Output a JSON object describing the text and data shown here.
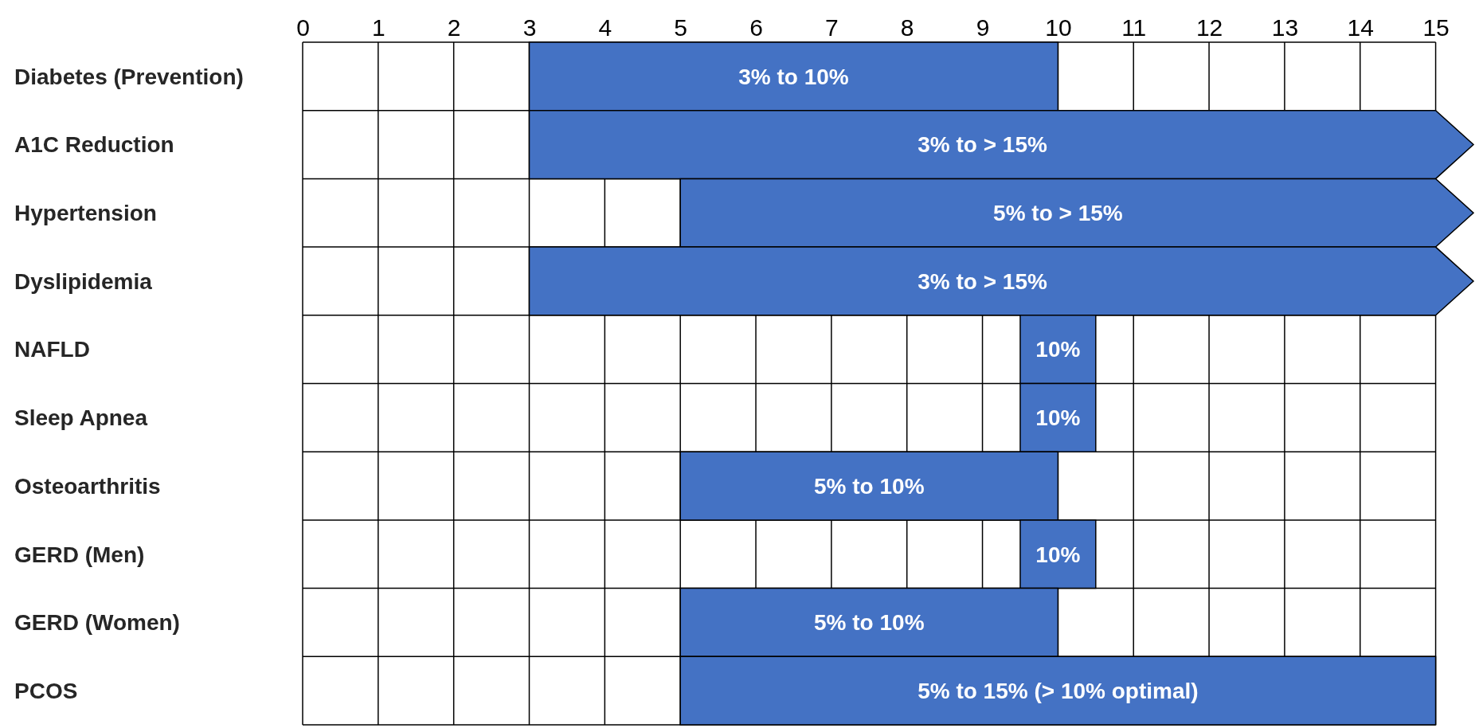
{
  "chart_data": {
    "type": "bar",
    "orientation": "horizontal",
    "categories": [
      "Diabetes (Prevention)",
      "A1C Reduction",
      "Hypertension",
      "Dyslipidemia",
      "NAFLD",
      "Sleep Apnea",
      "Osteoarthritis",
      "GERD (Men)",
      "GERD (Women)",
      "PCOS"
    ],
    "base": [
      3,
      3,
      5,
      3,
      9.5,
      9.5,
      5,
      9.5,
      5,
      5
    ],
    "values": [
      7,
      12.5,
      10.5,
      12.5,
      1,
      1,
      5,
      1,
      5,
      10
    ],
    "annotations": [
      "3% to 10%",
      "3% to > 15%",
      "5% to > 15%",
      "3% to > 15%",
      "10%",
      "10%",
      "5% to 10%",
      "10%",
      "5% to 10%",
      "5% to 15% (> 10% optimal)"
    ],
    "color": "#4472c4",
    "xlim": [
      0,
      15.5
    ],
    "xticks": [
      0,
      1,
      2,
      3,
      4,
      5,
      6,
      7,
      8,
      9,
      10,
      11,
      12,
      13,
      14,
      15
    ],
    "grid": true
  }
}
